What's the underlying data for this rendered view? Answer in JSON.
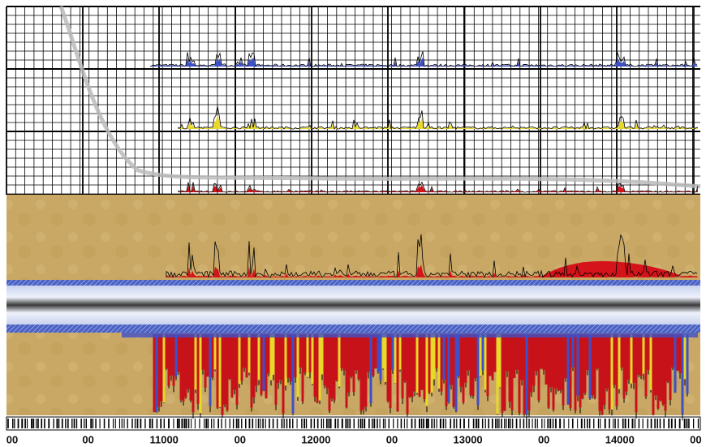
{
  "axis": {
    "labels": [
      "00",
      "00",
      "11000",
      "00",
      "12000",
      "00",
      "13000",
      "00",
      "14000",
      "00"
    ]
  }
}
